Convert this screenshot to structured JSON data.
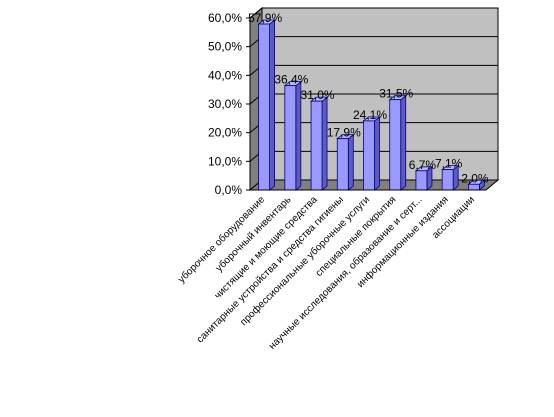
{
  "chart_data": {
    "type": "bar",
    "style": "3d-column",
    "categories": [
      "уборочное оборудование",
      "уборочный инвентарь",
      "чистящие и моющие средства",
      "санитарные устройства и средства гигиены",
      "профессиональные уборочные услуги",
      "специальные покрытия",
      "научные исследования, образование и серт...",
      "информационные издания",
      "ассоциации"
    ],
    "values": [
      57.9,
      36.4,
      31.0,
      17.9,
      24.1,
      31.5,
      6.7,
      7.1,
      2.0
    ],
    "data_labels": [
      "57,9%",
      "36,4%",
      "31,0%",
      "17,9%",
      "24,1%",
      "31,5%",
      "6,7%",
      "7,1%",
      "2,0%"
    ],
    "y_ticks": [
      "0,0%",
      "10,0%",
      "20,0%",
      "30,0%",
      "40,0%",
      "50,0%",
      "60,0%"
    ],
    "ylim": [
      0,
      60
    ],
    "title": "",
    "xlabel": "",
    "ylabel": "",
    "grid": true,
    "legend": "none",
    "colors": {
      "bar_front": "#9999ff",
      "bar_side": "#5c5cc0",
      "bar_top": "#b8b8ff",
      "bar_outline": "#000080",
      "plot_back": "#c0c0c0",
      "plot_floor": "#808080",
      "grid": "#000000"
    }
  }
}
